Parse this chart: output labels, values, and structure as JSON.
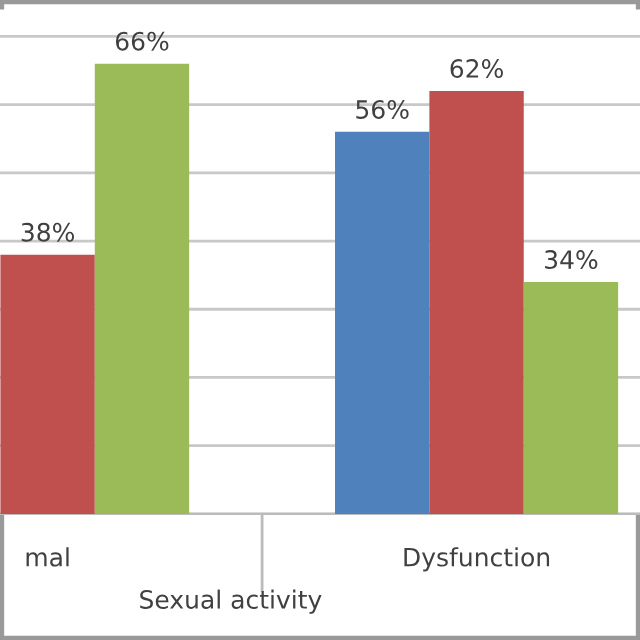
{
  "chart_data": {
    "type": "bar",
    "xlabel": "Sexual activity",
    "categories": [
      "mal",
      "Dysfunction"
    ],
    "series": [
      {
        "color": "#4f81bd",
        "values": [
          null,
          56
        ],
        "value_labels": [
          null,
          "56%"
        ]
      },
      {
        "color": "#c0504d",
        "values": [
          38,
          62
        ],
        "value_labels": [
          "38%",
          "62%"
        ]
      },
      {
        "color": "#9bbb59",
        "values": [
          66,
          34
        ],
        "value_labels": [
          "66%",
          "34%"
        ]
      }
    ],
    "tick_labels": "x",
    "grid": "y"
  }
}
